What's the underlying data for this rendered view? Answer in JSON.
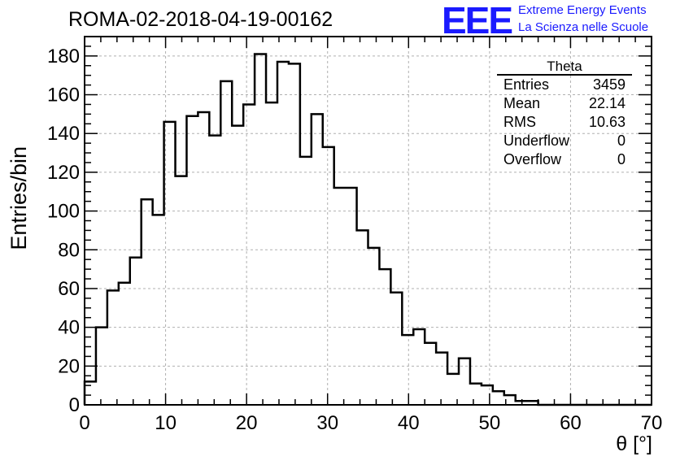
{
  "header": {
    "title": "ROMA-02-2018-04-19-00162",
    "logo_text": "EEE",
    "logo_line1": "Extreme Energy Events",
    "logo_line2": "La Scienza nelle Scuole"
  },
  "colors": {
    "logo": "#1a1aff",
    "histogram": "#000000",
    "grid": "#b0b0b0"
  },
  "stats_box": {
    "title": "Theta",
    "rows": [
      {
        "label": "Entries",
        "value": "3459"
      },
      {
        "label": "Mean",
        "value": "22.14"
      },
      {
        "label": "RMS",
        "value": "10.63"
      },
      {
        "label": "Underflow",
        "value": "0"
      },
      {
        "label": "Overflow",
        "value": "0"
      }
    ]
  },
  "chart_data": {
    "type": "bar",
    "style": "step-histogram",
    "title": "ROMA-02-2018-04-19-00162",
    "xlabel": "θ [°]",
    "ylabel": "Entries/bin",
    "xlim": [
      0,
      70
    ],
    "ylim": [
      0,
      190
    ],
    "bin_width": 1.4,
    "x_ticks": [
      0,
      10,
      20,
      30,
      40,
      50,
      60,
      70
    ],
    "y_ticks": [
      0,
      20,
      40,
      60,
      80,
      100,
      120,
      140,
      160,
      180
    ],
    "grid": true,
    "bin_edges_start": 0,
    "values": [
      12,
      40,
      59,
      63,
      76,
      106,
      98,
      146,
      118,
      149,
      151,
      139,
      167,
      144,
      155,
      181,
      156,
      177,
      176,
      128,
      150,
      133,
      112,
      112,
      90,
      81,
      70,
      58,
      36,
      39,
      32,
      27,
      16,
      24,
      11,
      10,
      7,
      5,
      2,
      2,
      0,
      0,
      0,
      0,
      0,
      0,
      0,
      0,
      0,
      0
    ]
  }
}
